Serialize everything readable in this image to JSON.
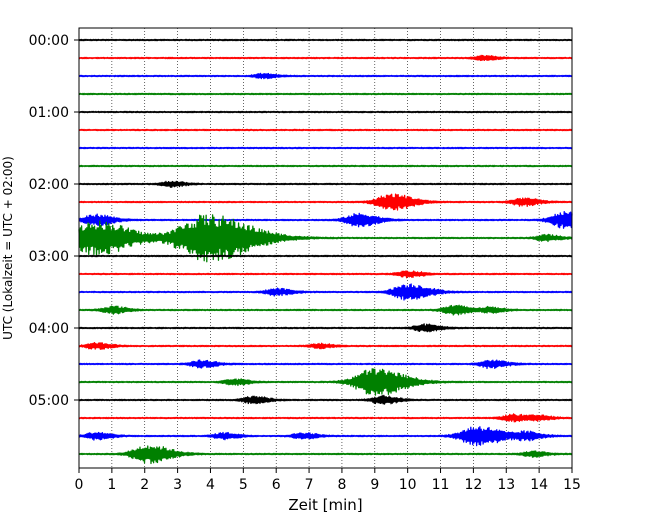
{
  "chart_data": {
    "type": "line",
    "title": "",
    "xlabel": "Zeit  [min]",
    "ylabel": "UTC (Lokalzeit = UTC + 02:00)",
    "xlim": [
      0,
      15
    ],
    "x_ticks": [
      "0",
      "1",
      "2",
      "3",
      "4",
      "5",
      "6",
      "7",
      "8",
      "9",
      "10",
      "11",
      "12",
      "13",
      "14",
      "15"
    ],
    "y_ticks": [
      "00:00",
      "01:00",
      "02:00",
      "03:00",
      "04:00",
      "05:00"
    ],
    "grid": "vertical dotted at each minute",
    "trace_interval_minutes": 15,
    "trace_colors": [
      "#000000",
      "#ff0000",
      "#0000ff",
      "#008000"
    ],
    "traces": [
      {
        "start": "00:00",
        "color": "#000000",
        "events": []
      },
      {
        "start": "00:15",
        "color": "#ff0000",
        "events": [
          {
            "time_min": 12.3,
            "amplitude": 0.25
          }
        ]
      },
      {
        "start": "00:30",
        "color": "#0000ff",
        "events": [
          {
            "time_min": 5.6,
            "amplitude": 0.25
          }
        ]
      },
      {
        "start": "00:45",
        "color": "#008000",
        "events": []
      },
      {
        "start": "01:00",
        "color": "#000000",
        "events": []
      },
      {
        "start": "01:15",
        "color": "#ff0000",
        "events": []
      },
      {
        "start": "01:30",
        "color": "#0000ff",
        "events": []
      },
      {
        "start": "01:45",
        "color": "#008000",
        "events": []
      },
      {
        "start": "02:00",
        "color": "#000000",
        "events": [
          {
            "time_min": 2.8,
            "amplitude": 0.3
          }
        ]
      },
      {
        "start": "02:15",
        "color": "#ff0000",
        "events": [
          {
            "time_min": 9.5,
            "amplitude": 0.9
          },
          {
            "time_min": 13.5,
            "amplitude": 0.45
          }
        ]
      },
      {
        "start": "02:30",
        "color": "#0000ff",
        "events": [
          {
            "time_min": 0.5,
            "amplitude": 0.6
          },
          {
            "time_min": 8.5,
            "amplitude": 0.7
          },
          {
            "time_min": 14.8,
            "amplitude": 0.9
          }
        ]
      },
      {
        "start": "02:45",
        "color": "#008000",
        "events": [
          {
            "time_min": 0.5,
            "amplitude": 1.9
          },
          {
            "time_min": 3.9,
            "amplitude": 2.6
          },
          {
            "time_min": 14.2,
            "amplitude": 0.35
          }
        ]
      },
      {
        "start": "03:00",
        "color": "#000000",
        "events": []
      },
      {
        "start": "03:15",
        "color": "#ff0000",
        "events": [
          {
            "time_min": 10.0,
            "amplitude": 0.35
          }
        ]
      },
      {
        "start": "03:30",
        "color": "#0000ff",
        "events": [
          {
            "time_min": 6.0,
            "amplitude": 0.4
          },
          {
            "time_min": 10.0,
            "amplitude": 0.9
          }
        ]
      },
      {
        "start": "03:45",
        "color": "#008000",
        "events": [
          {
            "time_min": 1.0,
            "amplitude": 0.4
          },
          {
            "time_min": 11.4,
            "amplitude": 0.5
          },
          {
            "time_min": 12.5,
            "amplitude": 0.3
          }
        ]
      },
      {
        "start": "04:00",
        "color": "#000000",
        "events": [
          {
            "time_min": 10.5,
            "amplitude": 0.4
          }
        ]
      },
      {
        "start": "04:15",
        "color": "#ff0000",
        "events": [
          {
            "time_min": 0.5,
            "amplitude": 0.35
          },
          {
            "time_min": 7.3,
            "amplitude": 0.25
          }
        ]
      },
      {
        "start": "04:30",
        "color": "#0000ff",
        "events": [
          {
            "time_min": 3.7,
            "amplitude": 0.4
          },
          {
            "time_min": 12.5,
            "amplitude": 0.45
          }
        ]
      },
      {
        "start": "04:45",
        "color": "#008000",
        "events": [
          {
            "time_min": 4.7,
            "amplitude": 0.35
          },
          {
            "time_min": 9.0,
            "amplitude": 1.5
          }
        ]
      },
      {
        "start": "05:00",
        "color": "#000000",
        "events": [
          {
            "time_min": 5.3,
            "amplitude": 0.4
          },
          {
            "time_min": 9.2,
            "amplitude": 0.45
          }
        ]
      },
      {
        "start": "05:15",
        "color": "#ff0000",
        "events": [
          {
            "time_min": 13.2,
            "amplitude": 0.4
          },
          {
            "time_min": 14.0,
            "amplitude": 0.25
          }
        ]
      },
      {
        "start": "05:30",
        "color": "#0000ff",
        "events": [
          {
            "time_min": 0.5,
            "amplitude": 0.4
          },
          {
            "time_min": 4.4,
            "amplitude": 0.35
          },
          {
            "time_min": 6.8,
            "amplitude": 0.35
          },
          {
            "time_min": 12.1,
            "amplitude": 1.1
          },
          {
            "time_min": 13.6,
            "amplitude": 0.45
          }
        ]
      },
      {
        "start": "05:45",
        "color": "#008000",
        "events": [
          {
            "time_min": 2.1,
            "amplitude": 1.0
          },
          {
            "time_min": 13.8,
            "amplitude": 0.3
          }
        ]
      }
    ]
  }
}
